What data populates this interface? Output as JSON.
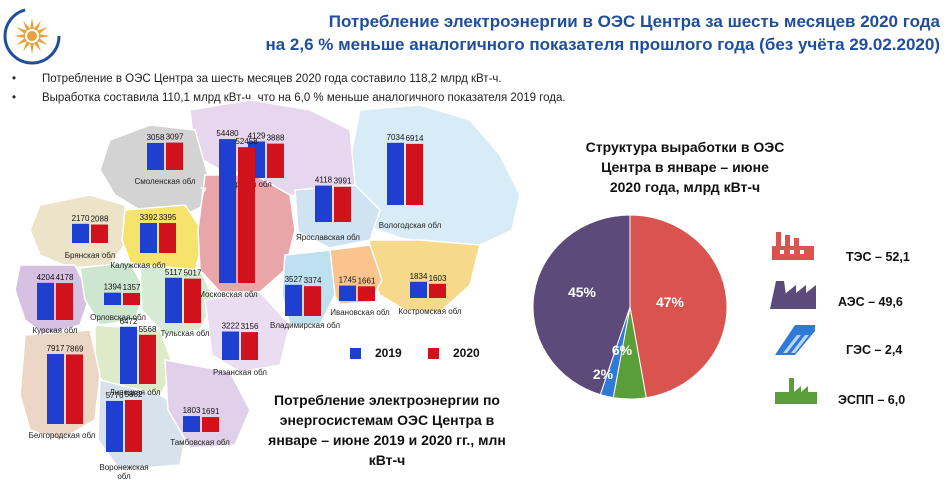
{
  "header": {
    "title_line1": "Потребление электроэнергии в ОЭС Центра за шесть  месяцев 2020 года",
    "title_line2": "на 2,6 % меньше аналогичного показателя прошлого года (без учёта 29.02.2020)"
  },
  "bullets": [
    "Потребление  в ОЭС Центра  за шесть месяцев 2020 года составило  118,2 млрд кВт-ч.",
    "Выработка  составила  110,1 млрд кВт-ч, что на 6,0 % меньше аналогичного  показателя  2019 года."
  ],
  "colors": {
    "y2019": "#1f3fd1",
    "y2020": "#d1121c",
    "tes": "#d9534f",
    "aes": "#5b4a7a",
    "ges": "#2f7ad8",
    "essp": "#5a9e3a",
    "title": "#1f4e9c"
  },
  "chart_data": [
    {
      "type": "bar",
      "title": "Потребление электроэнергии по энергосистемам ОЭС Центра в январе – июне 2019 и 2020 гг., млн кВт-ч",
      "series": [
        {
          "name": "2019",
          "color": "#1f3fd1"
        },
        {
          "name": "2020",
          "color": "#d1121c"
        }
      ],
      "regions": [
        {
          "name": "Смоленская обл",
          "v2019": 3058,
          "v2020": 3097
        },
        {
          "name": "Тверская обл",
          "v2019": 4129,
          "v2020": 3888
        },
        {
          "name": "Вологодская обл",
          "v2019": 7034,
          "v2020": 6914
        },
        {
          "name": "Брянская обл",
          "v2019": 2170,
          "v2020": 2088
        },
        {
          "name": "Калужская обл",
          "v2019": 3392,
          "v2020": 3395
        },
        {
          "name": "Московская обл",
          "v2019": 54480,
          "v2020": 52458
        },
        {
          "name": "Ярославская обл",
          "v2019": 4118,
          "v2020": 3991
        },
        {
          "name": "Курская обл",
          "v2019": 4204,
          "v2020": 4178
        },
        {
          "name": "Орловская обл",
          "v2019": 1394,
          "v2020": 1357
        },
        {
          "name": "Тульская обл",
          "v2019": 5117,
          "v2020": 5017
        },
        {
          "name": "Владимирская обл",
          "v2019": 3527,
          "v2020": 3374
        },
        {
          "name": "Ивановская обл",
          "v2019": 1745,
          "v2020": 1661
        },
        {
          "name": "Костромская обл",
          "v2019": 1834,
          "v2020": 1603
        },
        {
          "name": "Липецкая обл",
          "v2019": 6472,
          "v2020": 5568
        },
        {
          "name": "Рязанская обл",
          "v2019": 3222,
          "v2020": 3156
        },
        {
          "name": "Белгородская обл",
          "v2019": 7917,
          "v2020": 7869
        },
        {
          "name": "Воронежская обл",
          "v2019": 5776,
          "v2020": 5882
        },
        {
          "name": "Тамбовская обл",
          "v2019": 1803,
          "v2020": 1691
        }
      ],
      "map_region_number": "7"
    },
    {
      "type": "pie",
      "title": "Структура выработки в ОЭС Центра в январе – июне 2020 года, млрд кВт-ч",
      "slices": [
        {
          "name": "ТЭС",
          "value": 52.1,
          "label": "47%",
          "legend": "ТЭС – 52,1",
          "color": "#d9534f"
        },
        {
          "name": "ЭСПП",
          "value": 6.0,
          "label": "6%",
          "legend": "ЭСПП – 6,0",
          "color": "#5a9e3a"
        },
        {
          "name": "ГЭС",
          "value": 2.4,
          "label": "2%",
          "legend": "ГЭС – 2,4",
          "color": "#2f7ad8"
        },
        {
          "name": "АЭС",
          "value": 49.6,
          "label": "45%",
          "legend": "АЭС – 49,6",
          "color": "#5b4a7a"
        }
      ]
    }
  ]
}
